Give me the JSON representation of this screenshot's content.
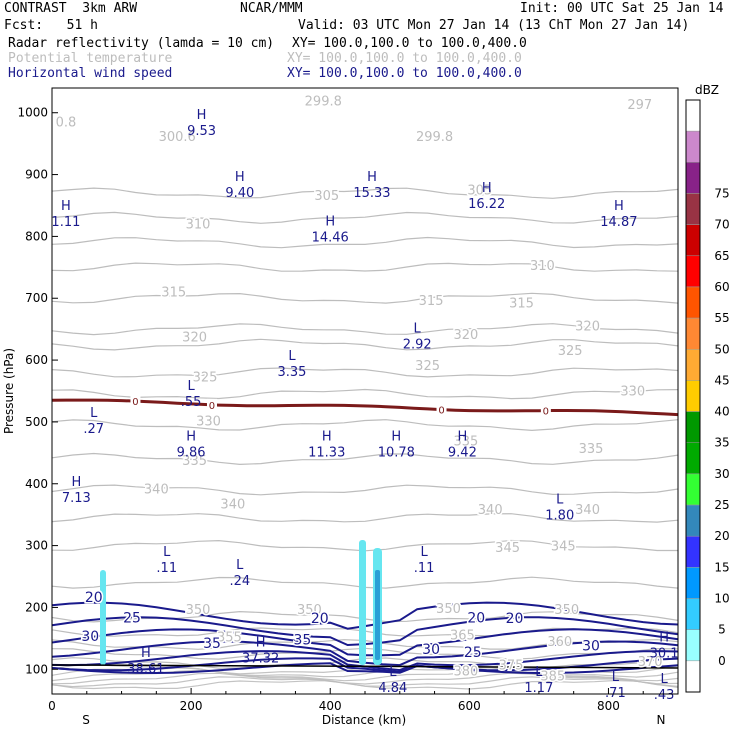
{
  "header": {
    "model": "CONTRAST  3km ARW",
    "center": "NCAR/MMM",
    "init": "Init: 00 UTC Sat 25 Jan 14",
    "fcst": "Fcst:   51 h",
    "valid": "Valid: 03 UTC Mon 27 Jan 14 (13 ChT Mon 27 Jan 14)",
    "fields": [
      {
        "label": "Radar reflectivity (lamda = 10 cm)",
        "xy": "XY= 100.0,100.0 to 100.0,400.0",
        "color": "#000000"
      },
      {
        "label": "Potential temperature",
        "xy": "XY= 100.0,100.0 to 100.0,400.0",
        "color": "#bdbdbd"
      },
      {
        "label": "Horizontal wind speed",
        "xy": "XY= 100.0,100.0 to 100.0,400.0",
        "color": "#1a1a8c"
      }
    ]
  },
  "chart_data": {
    "type": "cross-section",
    "xlabel": "Distance (km)",
    "ylabel": "Pressure (hPa)",
    "xlim": [
      0,
      900
    ],
    "ylim": [
      1040,
      60
    ],
    "x_ticks": [
      0,
      200,
      400,
      600,
      800
    ],
    "y_ticks": [
      100,
      200,
      300,
      400,
      500,
      600,
      700,
      800,
      900,
      1000
    ],
    "x_end_labels": {
      "left": "S",
      "right": "N"
    },
    "colorbar": {
      "title": "dBZ",
      "levels": [
        0,
        5,
        10,
        15,
        20,
        25,
        30,
        35,
        40,
        45,
        50,
        55,
        60,
        65,
        70,
        75
      ],
      "colors": [
        "#ffffff",
        "#99ffff",
        "#33ccff",
        "#0099ff",
        "#3333ff",
        "#3388bb",
        "#33ff33",
        "#00aa00",
        "#009900",
        "#ffcc00",
        "#ffaa33",
        "#ff8833",
        "#ff5500",
        "#ff0000",
        "#cc0000",
        "#993344",
        "#882288",
        "#cc88cc",
        "#ffffff"
      ]
    },
    "theta_labels": [
      {
        "text": "380",
        "x": 595,
        "p": 90
      },
      {
        "text": "375",
        "x": 660,
        "p": 100
      },
      {
        "text": "385",
        "x": 720,
        "p": 82
      },
      {
        "text": "370",
        "x": 860,
        "p": 105
      },
      {
        "text": "365",
        "x": 590,
        "p": 148
      },
      {
        "text": "360",
        "x": 730,
        "p": 138
      },
      {
        "text": "355",
        "x": 255,
        "p": 145
      },
      {
        "text": "350",
        "x": 210,
        "p": 189
      },
      {
        "text": "350",
        "x": 370,
        "p": 189
      },
      {
        "text": "350",
        "x": 570,
        "p": 191
      },
      {
        "text": "350",
        "x": 740,
        "p": 189
      },
      {
        "text": "345",
        "x": 655,
        "p": 290
      },
      {
        "text": "345",
        "x": 735,
        "p": 292
      },
      {
        "text": "340",
        "x": 260,
        "p": 360
      },
      {
        "text": "340",
        "x": 150,
        "p": 384
      },
      {
        "text": "340",
        "x": 630,
        "p": 351
      },
      {
        "text": "340",
        "x": 770,
        "p": 351
      },
      {
        "text": "335",
        "x": 205,
        "p": 430
      },
      {
        "text": "335",
        "x": 595,
        "p": 462
      },
      {
        "text": "335",
        "x": 775,
        "p": 450
      },
      {
        "text": "330",
        "x": 225,
        "p": 494
      },
      {
        "text": "330",
        "x": 835,
        "p": 543
      },
      {
        "text": "325",
        "x": 220,
        "p": 565
      },
      {
        "text": "325",
        "x": 540,
        "p": 584
      },
      {
        "text": "325",
        "x": 745,
        "p": 608
      },
      {
        "text": "320",
        "x": 205,
        "p": 630
      },
      {
        "text": "320",
        "x": 595,
        "p": 634
      },
      {
        "text": "320",
        "x": 770,
        "p": 648
      },
      {
        "text": "315",
        "x": 175,
        "p": 703
      },
      {
        "text": "315",
        "x": 545,
        "p": 689
      },
      {
        "text": "315",
        "x": 675,
        "p": 685
      },
      {
        "text": "310",
        "x": 210,
        "p": 813
      },
      {
        "text": "310",
        "x": 705,
        "p": 746
      },
      {
        "text": "305",
        "x": 395,
        "p": 859
      },
      {
        "text": "305",
        "x": 615,
        "p": 868
      },
      {
        "text": "300.6",
        "x": 180,
        "p": 954
      },
      {
        "text": "299.8",
        "x": 550,
        "p": 954
      },
      {
        "text": "299.8",
        "x": 390,
        "p": 1012
      },
      {
        "text": "0.8",
        "x": 20,
        "p": 978
      },
      {
        "text": "297",
        "x": 845,
        "p": 1006
      }
    ],
    "wind_labels": [
      {
        "text": "20",
        "x": 60,
        "p": 209
      },
      {
        "text": "25",
        "x": 115,
        "p": 176
      },
      {
        "text": "30",
        "x": 55,
        "p": 146
      },
      {
        "text": "35",
        "x": 230,
        "p": 134
      },
      {
        "text": "35",
        "x": 360,
        "p": 140
      },
      {
        "text": "20",
        "x": 385,
        "p": 175
      },
      {
        "text": "30",
        "x": 545,
        "p": 125
      },
      {
        "text": "25",
        "x": 605,
        "p": 120
      },
      {
        "text": "20",
        "x": 610,
        "p": 176
      },
      {
        "text": "20",
        "x": 665,
        "p": 175
      },
      {
        "text": "30",
        "x": 775,
        "p": 130
      }
    ],
    "extrema": [
      {
        "mark": "H",
        "value": "38.61",
        "x": 135,
        "p": 120
      },
      {
        "mark": "H",
        "value": "37.32",
        "x": 300,
        "p": 137
      },
      {
        "mark": "L",
        "value": "4.84",
        "x": 490,
        "p": 89
      },
      {
        "mark": "L",
        "value": "1.17",
        "x": 700,
        "p": 89
      },
      {
        "mark": "L",
        "value": ".71",
        "x": 810,
        "p": 81
      },
      {
        "mark": "L",
        "value": ".43",
        "x": 880,
        "p": 78
      },
      {
        "mark": "H",
        "value": "30.1",
        "x": 880,
        "p": 145
      },
      {
        "mark": "L",
        "value": ".11",
        "x": 165,
        "p": 283
      },
      {
        "mark": "L",
        "value": ".24",
        "x": 270,
        "p": 262
      },
      {
        "mark": "L",
        "value": ".11",
        "x": 535,
        "p": 283
      },
      {
        "mark": "H",
        "value": "7.13",
        "x": 35,
        "p": 396
      },
      {
        "mark": "L",
        "value": "1.80",
        "x": 730,
        "p": 368
      },
      {
        "mark": "H",
        "value": "9.86",
        "x": 200,
        "p": 470
      },
      {
        "mark": "H",
        "value": "11.33",
        "x": 395,
        "p": 470
      },
      {
        "mark": "H",
        "value": "10.78",
        "x": 495,
        "p": 470
      },
      {
        "mark": "H",
        "value": "9.42",
        "x": 590,
        "p": 470
      },
      {
        "mark": "L",
        "value": ".27",
        "x": 60,
        "p": 508
      },
      {
        "mark": "L",
        "value": ".55",
        "x": 200,
        "p": 552
      },
      {
        "mark": "L",
        "value": "3.35",
        "x": 345,
        "p": 600
      },
      {
        "mark": "L",
        "value": "2.92",
        "x": 525,
        "p": 645
      },
      {
        "mark": "H",
        "value": "14.46",
        "x": 400,
        "p": 818
      },
      {
        "mark": "H",
        "value": "1.11",
        "x": 20,
        "p": 843
      },
      {
        "mark": "H",
        "value": "14.87",
        "x": 815,
        "p": 843
      },
      {
        "mark": "H",
        "value": "16.22",
        "x": 625,
        "p": 872
      },
      {
        "mark": "H",
        "value": "9.40",
        "x": 270,
        "p": 890
      },
      {
        "mark": "H",
        "value": "15.33",
        "x": 460,
        "p": 890
      },
      {
        "mark": "H",
        "value": "9.53",
        "x": 215,
        "p": 990
      }
    ],
    "freezing_level": {
      "label": "0",
      "p_start": 535,
      "p_end": 513
    }
  }
}
